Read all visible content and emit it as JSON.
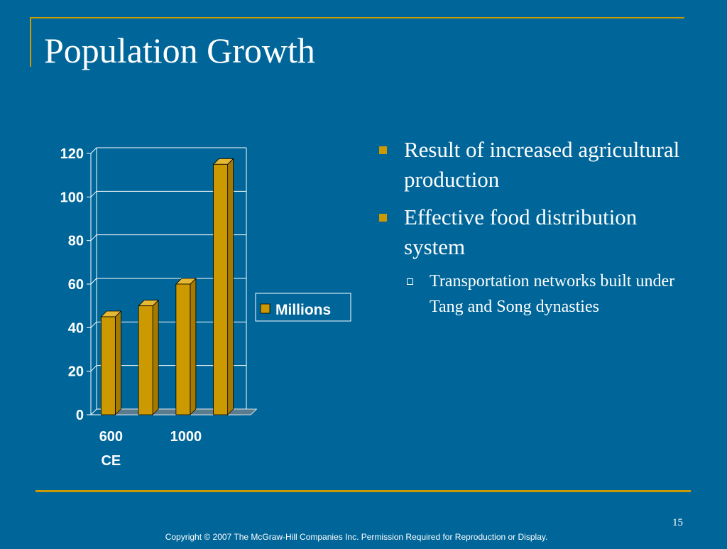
{
  "slide": {
    "title": "Population Growth",
    "page_number": "15",
    "copyright": "Copyright © 2007 The McGraw-Hill Companies Inc. Permission Required for Reproduction or Display."
  },
  "bullets": [
    {
      "text": "Result of increased agricultural production"
    },
    {
      "text": "Effective food distribution system"
    }
  ],
  "sub_bullets": [
    {
      "text": "Transportation networks built under Tang and Song dynasties"
    }
  ],
  "colors": {
    "background": "#006699",
    "accent": "#cc9900",
    "bar_front": "#cc9900",
    "bar_side": "#a67a00",
    "bar_top": "#e6b833"
  },
  "chart_data": {
    "type": "bar",
    "categories": [
      "600 CE",
      "",
      "1000",
      ""
    ],
    "category_lines": [
      [
        "600",
        "CE"
      ],
      [],
      [
        "1000"
      ],
      []
    ],
    "series": [
      {
        "name": "Millions",
        "values": [
          45,
          50,
          60,
          115
        ]
      }
    ],
    "y_ticks": [
      "0",
      "20",
      "40",
      "60",
      "80",
      "100",
      "120"
    ],
    "ylim": [
      0,
      120
    ],
    "grid": true,
    "legend": "right"
  }
}
